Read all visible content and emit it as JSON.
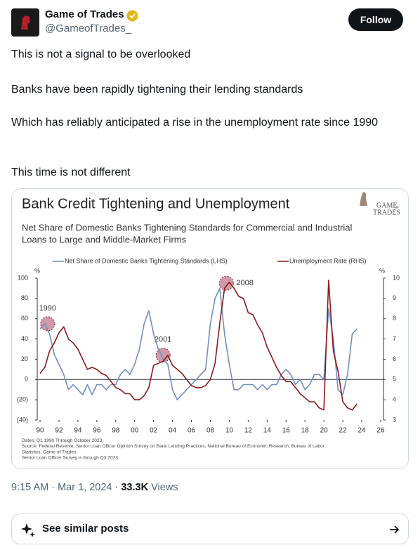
{
  "header": {
    "name": "Game of Trades",
    "handle": "@GameofTrades_",
    "follow": "Follow"
  },
  "paragraphs": [
    "This is not a signal to be overlooked",
    "Banks have been rapidly tightening their lending standards",
    "Which has reliably anticipated a rise in the unemployment rate since 1990",
    "This time is not different"
  ],
  "chart_data": {
    "type": "line",
    "title": "Bank Credit Tightening and Unemployment",
    "subtitle": [
      "Net Share of Domestic Banks Tightening Standards for Commercial and Industrial",
      "Loans to Large and Middle-Market Firms"
    ],
    "logo": [
      "GAME",
      "OF",
      "TRADES"
    ],
    "x": [
      1990,
      1990.5,
      1991,
      1991.5,
      1992,
      1992.5,
      1993,
      1993.5,
      1994,
      1994.5,
      1995,
      1995.5,
      1996,
      1996.5,
      1997,
      1997.5,
      1998,
      1998.5,
      1999,
      1999.5,
      2000,
      2000.5,
      2001,
      2001.5,
      2002,
      2002.5,
      2003,
      2003.5,
      2004,
      2004.5,
      2005,
      2005.5,
      2006,
      2006.5,
      2007,
      2007.5,
      2008,
      2008.5,
      2009,
      2009.5,
      2010,
      2010.5,
      2011,
      2011.5,
      2012,
      2012.5,
      2013,
      2013.5,
      2014,
      2014.5,
      2015,
      2015.5,
      2016,
      2016.5,
      2017,
      2017.5,
      2018,
      2018.5,
      2019,
      2019.5,
      2020,
      2020.5,
      2021,
      2021.5,
      2022,
      2022.5,
      2023,
      2023.5
    ],
    "series": [
      {
        "name": "Net Share of Domestic Banks Tightening Standards (LHS)",
        "color": "#6f8fc4",
        "axis": "y",
        "values": [
          50,
          55,
          45,
          25,
          15,
          5,
          -10,
          -5,
          -10,
          -15,
          -5,
          -15,
          -5,
          -5,
          -10,
          -5,
          -5,
          5,
          10,
          5,
          15,
          30,
          55,
          68,
          45,
          30,
          20,
          15,
          -10,
          -20,
          -15,
          -10,
          -5,
          0,
          5,
          10,
          55,
          80,
          90,
          45,
          15,
          -10,
          -10,
          -5,
          -5,
          -5,
          -10,
          -5,
          -10,
          -5,
          -5,
          5,
          10,
          5,
          -5,
          0,
          -10,
          -5,
          5,
          5,
          0,
          70,
          40,
          -10,
          -15,
          5,
          45,
          50
        ]
      },
      {
        "name": "Unemployment Rate (RHS)",
        "color": "#8b1a1a",
        "axis": "y2",
        "values": [
          5.3,
          5.6,
          6.4,
          6.8,
          7.3,
          7.6,
          7.0,
          6.8,
          6.5,
          6.0,
          5.5,
          5.6,
          5.5,
          5.3,
          5.2,
          4.9,
          4.6,
          4.5,
          4.3,
          4.3,
          4.0,
          4.0,
          4.2,
          4.6,
          5.7,
          5.8,
          5.9,
          6.2,
          5.7,
          5.5,
          5.3,
          5.0,
          4.7,
          4.6,
          4.6,
          4.7,
          5.0,
          5.8,
          7.8,
          9.5,
          9.8,
          9.5,
          9.1,
          9.0,
          8.3,
          8.2,
          7.7,
          7.3,
          6.6,
          6.1,
          5.6,
          5.2,
          4.9,
          4.9,
          4.6,
          4.3,
          4.1,
          3.9,
          3.9,
          3.6,
          3.5,
          9.9,
          6.4,
          5.4,
          3.9,
          3.6,
          3.5,
          3.8
        ]
      }
    ],
    "xlim": [
      1989.7,
      2026.3
    ],
    "xticks": [
      {
        "value": 1990,
        "label": "90"
      },
      {
        "value": 1992,
        "label": "92"
      },
      {
        "value": 1994,
        "label": "94"
      },
      {
        "value": 1996,
        "label": "96"
      },
      {
        "value": 1998,
        "label": "98"
      },
      {
        "value": 2000,
        "label": "00"
      },
      {
        "value": 2002,
        "label": "02"
      },
      {
        "value": 2004,
        "label": "04"
      },
      {
        "value": 2006,
        "label": "06"
      },
      {
        "value": 2008,
        "label": "08"
      },
      {
        "value": 2010,
        "label": "10"
      },
      {
        "value": 2012,
        "label": "12"
      },
      {
        "value": 2014,
        "label": "14"
      },
      {
        "value": 2016,
        "label": "16"
      },
      {
        "value": 2018,
        "label": "18"
      },
      {
        "value": 2020,
        "label": "20"
      },
      {
        "value": 2022,
        "label": "22"
      },
      {
        "value": 2024,
        "label": "24"
      },
      {
        "value": 2026,
        "label": "26"
      }
    ],
    "ylim": [
      -40,
      100
    ],
    "yticks": [
      {
        "value": -40,
        "label": "(40)"
      },
      {
        "value": -20,
        "label": "(20)"
      },
      0,
      20,
      40,
      60,
      80,
      100
    ],
    "y2lim": [
      3,
      10
    ],
    "y2ticks": [
      3,
      4,
      5,
      6,
      7,
      8,
      9,
      10
    ],
    "y_unit": "%",
    "y2_unit": "%",
    "annotations": [
      {
        "text": "1990",
        "x": 1990.8,
        "y": 55,
        "side": "top"
      },
      {
        "text": "2001",
        "x": 2003,
        "y": 24,
        "side": "top"
      },
      {
        "text": "2008",
        "x": 2009.7,
        "y": 95,
        "side": "right"
      }
    ],
    "notes": [
      "Dates: Q1 1990 Through October 2023.",
      "Source: Federal Reserve, Senior Loan Officer Opinion Survey on Bank Lending Practices, National Bureau of Economic Research, Bureau of Labor",
      "Statistics, Game of Trades.",
      "Senior Loan Officer Survey is through Q3 2023."
    ]
  },
  "footer": {
    "time": "9:15 AM · Mar 1, 2024 · ",
    "views": "33.3K",
    "views_label": " Views",
    "similar": "See similar posts"
  }
}
